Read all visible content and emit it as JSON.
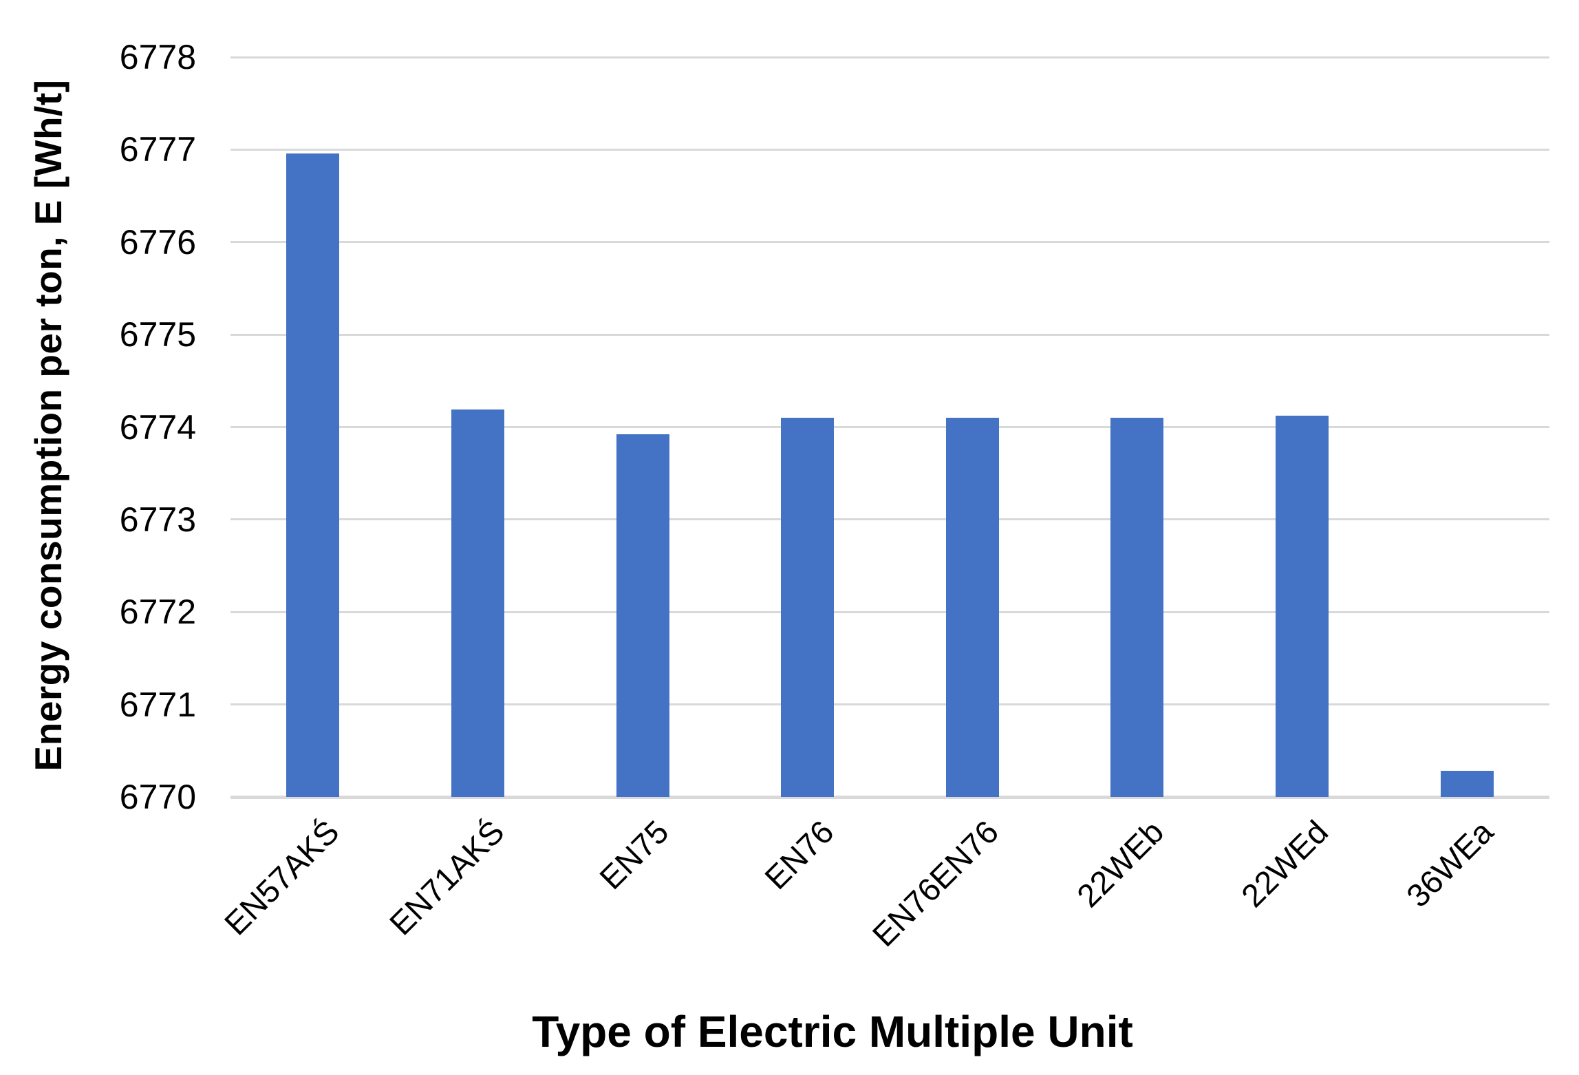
{
  "chart_data": {
    "type": "bar",
    "title": "",
    "categories": [
      "EN57AKŚ",
      "EN71AKŚ",
      "EN75",
      "EN76",
      "EN76EN76",
      "22WEb",
      "22WEd",
      "36WEa"
    ],
    "values": [
      6776.96,
      6774.19,
      6773.92,
      6774.1,
      6774.1,
      6774.1,
      6774.12,
      6770.28
    ],
    "xlabel": "Type of Electric Multiple Unit",
    "ylabel": "Energy consumption per ton, E [Wh/t]",
    "ylim": [
      6770,
      6778
    ],
    "yticks": [
      6770,
      6771,
      6772,
      6773,
      6774,
      6775,
      6776,
      6777,
      6778
    ],
    "grid": "horizontal",
    "legend": "none",
    "bar_color": "#4472C4",
    "gridline_color": "#D9D9D9",
    "axis_line_color": "#D9D9D9",
    "text_color": "#000000"
  }
}
